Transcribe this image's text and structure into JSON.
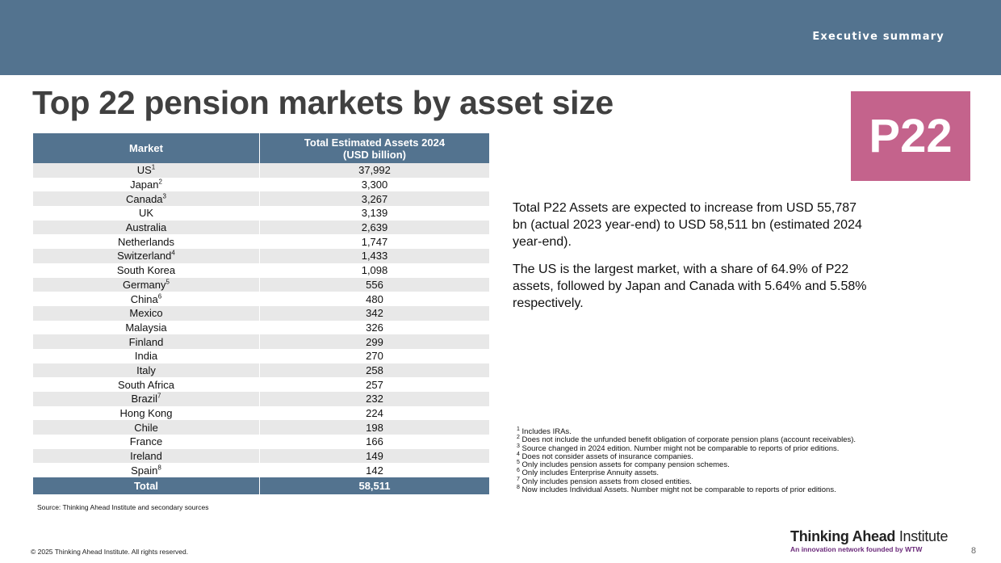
{
  "header": {
    "section": "Executive summary"
  },
  "title": "Top 22 pension markets by asset size",
  "badge": "P22",
  "table": {
    "col_market": "Market",
    "col_assets_line1": "Total Estimated Assets 2024",
    "col_assets_line2": "(USD billion)",
    "rows": [
      {
        "market": "US",
        "fn": "1",
        "value": "37,992"
      },
      {
        "market": "Japan",
        "fn": "2",
        "value": "3,300"
      },
      {
        "market": "Canada",
        "fn": "3",
        "value": "3,267"
      },
      {
        "market": "UK",
        "fn": "",
        "value": "3,139"
      },
      {
        "market": "Australia",
        "fn": "",
        "value": "2,639"
      },
      {
        "market": "Netherlands",
        "fn": "",
        "value": "1,747"
      },
      {
        "market": "Switzerland",
        "fn": "4",
        "value": "1,433"
      },
      {
        "market": "South Korea",
        "fn": "",
        "value": "1,098"
      },
      {
        "market": "Germany",
        "fn": "5",
        "value": "556"
      },
      {
        "market": "China",
        "fn": "6",
        "value": "480"
      },
      {
        "market": "Mexico",
        "fn": "",
        "value": "342"
      },
      {
        "market": "Malaysia",
        "fn": "",
        "value": "326"
      },
      {
        "market": "Finland",
        "fn": "",
        "value": "299"
      },
      {
        "market": "India",
        "fn": "",
        "value": "270"
      },
      {
        "market": "Italy",
        "fn": "",
        "value": "258"
      },
      {
        "market": "South Africa",
        "fn": "",
        "value": "257"
      },
      {
        "market": "Brazil",
        "fn": "7",
        "value": "232"
      },
      {
        "market": "Hong Kong",
        "fn": "",
        "value": "224"
      },
      {
        "market": "Chile",
        "fn": "",
        "value": "198"
      },
      {
        "market": "France",
        "fn": "",
        "value": "166"
      },
      {
        "market": "Ireland",
        "fn": "",
        "value": "149"
      },
      {
        "market": "Spain",
        "fn": "8",
        "value": "142"
      }
    ],
    "total_label": "Total",
    "total_value": "58,511"
  },
  "source": "Source: Thinking Ahead Institute and secondary sources",
  "summary": [
    "Total P22 Assets are expected to increase from USD 55,787 bn (actual 2023 year-end) to USD 58,511 bn (estimated 2024 year-end).",
    "The US is the largest market, with a share of 64.9% of P22 assets, followed by Japan and Canada with 5.64% and 5.58% respectively."
  ],
  "footnotes": [
    {
      "n": "1",
      "text": "Includes IRAs."
    },
    {
      "n": "2",
      "text": "Does not include the unfunded benefit obligation of corporate pension plans (account receivables)."
    },
    {
      "n": "3",
      "text": "Source changed in 2024 edition. Number might not be comparable to reports of prior editions."
    },
    {
      "n": "4",
      "text": "Does not consider assets of insurance companies."
    },
    {
      "n": "5",
      "text": "Only includes pension assets for company pension schemes."
    },
    {
      "n": "6",
      "text": "Only includes Enterprise Annuity assets."
    },
    {
      "n": "7",
      "text": "Only includes pension assets from closed entities."
    },
    {
      "n": "8",
      "text": "Now includes Individual Assets. Number might not be comparable to reports of prior editions."
    }
  ],
  "footer": {
    "copyright": "© 2025 Thinking Ahead Institute. All rights reserved.",
    "brand_bold": "Thinking Ahead",
    "brand_light": "Institute",
    "tagline": "An innovation network founded by WTW",
    "page": "8"
  },
  "colors": {
    "header_bar": "#53738f",
    "badge": "#c4638c",
    "tagline": "#6b2a7a"
  }
}
